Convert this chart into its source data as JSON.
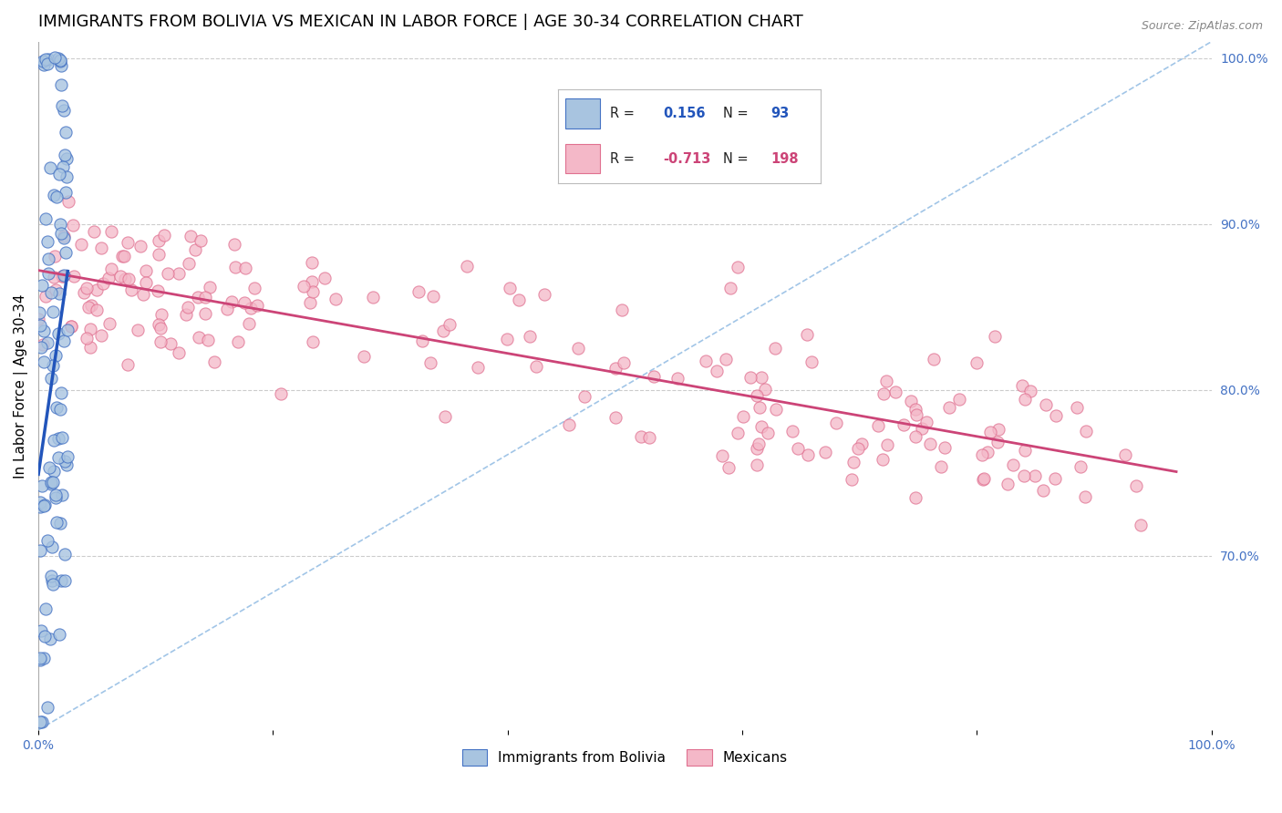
{
  "title": "IMMIGRANTS FROM BOLIVIA VS MEXICAN IN LABOR FORCE | AGE 30-34 CORRELATION CHART",
  "source": "Source: ZipAtlas.com",
  "ylabel": "In Labor Force | Age 30-34",
  "xlim": [
    0.0,
    1.0
  ],
  "ylim": [
    0.595,
    1.01
  ],
  "y_tick_right_labels": [
    "70.0%",
    "80.0%",
    "90.0%",
    "100.0%"
  ],
  "y_tick_right_values": [
    0.7,
    0.8,
    0.9,
    1.0
  ],
  "bolivia_color": "#a8c4e0",
  "bolivia_edge_color": "#4472c4",
  "mexico_color": "#f4b8c8",
  "mexico_edge_color": "#e07090",
  "bolivia_R": 0.156,
  "bolivia_N": 93,
  "mexico_R": -0.713,
  "mexico_N": 198,
  "legend_label_bolivia": "Immigrants from Bolivia",
  "legend_label_mexico": "Mexicans",
  "bolivia_line_color": "#2255bb",
  "mexico_line_color": "#cc4477",
  "diagonal_color": "#7aaddd",
  "title_fontsize": 13,
  "axis_label_fontsize": 11,
  "tick_fontsize": 10,
  "legend_R_color": "#333333",
  "legend_val_color_blue": "#2255bb",
  "legend_val_color_pink": "#cc4477"
}
